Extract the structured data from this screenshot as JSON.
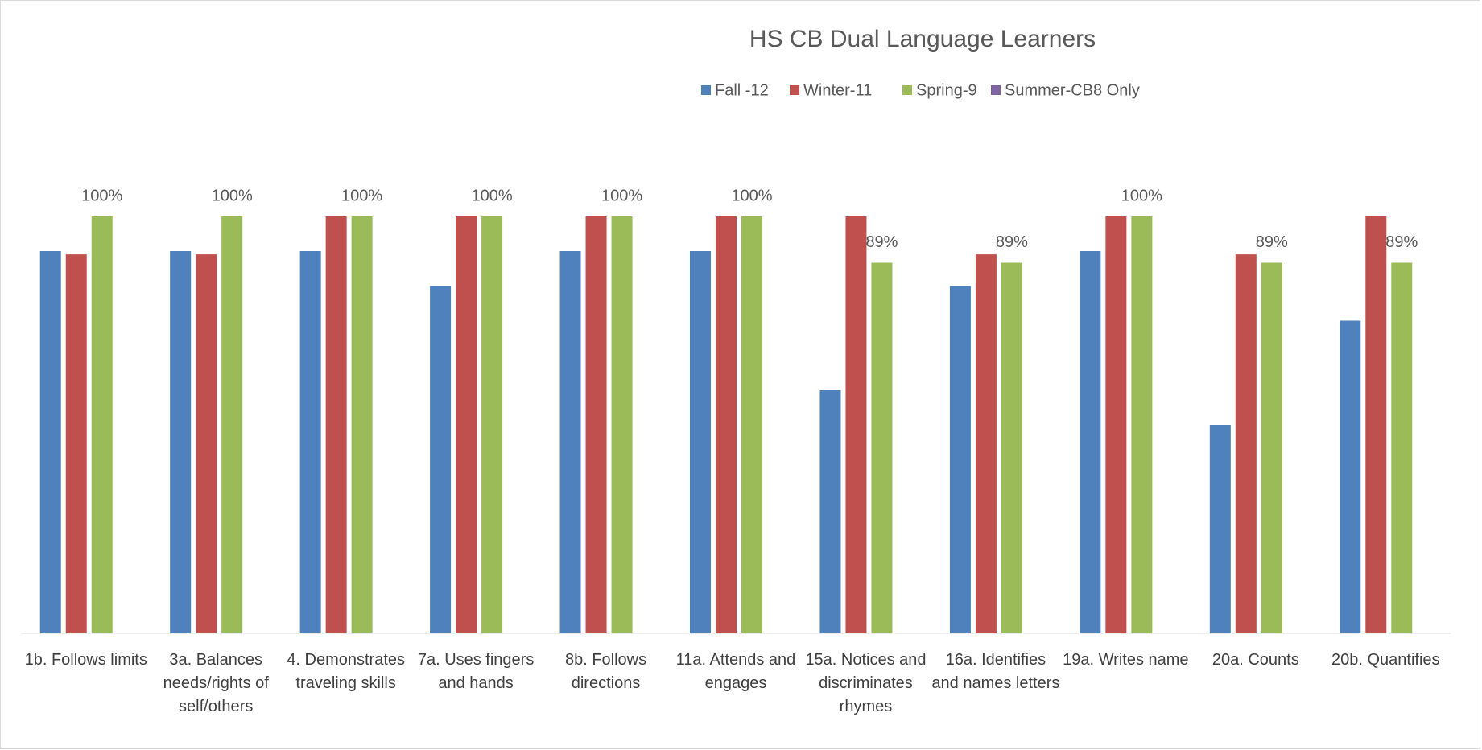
{
  "chart_data": {
    "type": "bar",
    "title": "HS CB Dual Language Learners",
    "categories": [
      "1b. Follows limits",
      "3a. Balances needs/rights of self/others",
      "4. Demonstrates traveling skills",
      "7a.  Uses fingers and hands",
      "8b. Follows directions",
      "11a. Attends and engages",
      "15a. Notices and discriminates rhymes",
      "16a. Identifies and names letters",
      "19a. Writes name",
      "20a. Counts",
      "20b. Quantifies"
    ],
    "series": [
      {
        "name": "Fall -12",
        "color": "#4f81bd",
        "values": [
          91.7,
          91.7,
          91.7,
          83.3,
          91.7,
          91.7,
          58.3,
          83.3,
          91.7,
          50,
          75
        ]
      },
      {
        "name": "Winter-11",
        "color": "#c0504d",
        "values": [
          90.9,
          90.9,
          100,
          100,
          100,
          100,
          100,
          90.9,
          100,
          90.9,
          100
        ]
      },
      {
        "name": "Spring-9",
        "color": "#9bbb59",
        "values": [
          100,
          100,
          100,
          100,
          100,
          100,
          88.9,
          88.9,
          100,
          88.9,
          88.9
        ],
        "value_labels": [
          "100%",
          "100%",
          "100%",
          "100%",
          "100%",
          "100%",
          "89%",
          "89%",
          "100%",
          "89%",
          "89%"
        ]
      },
      {
        "name": "Summer-CB8 Only",
        "color": "#8064a2",
        "values": [
          null,
          null,
          null,
          null,
          null,
          null,
          null,
          null,
          null,
          null,
          null
        ]
      }
    ],
    "ylim": [
      0,
      100
    ],
    "legend": "top"
  }
}
